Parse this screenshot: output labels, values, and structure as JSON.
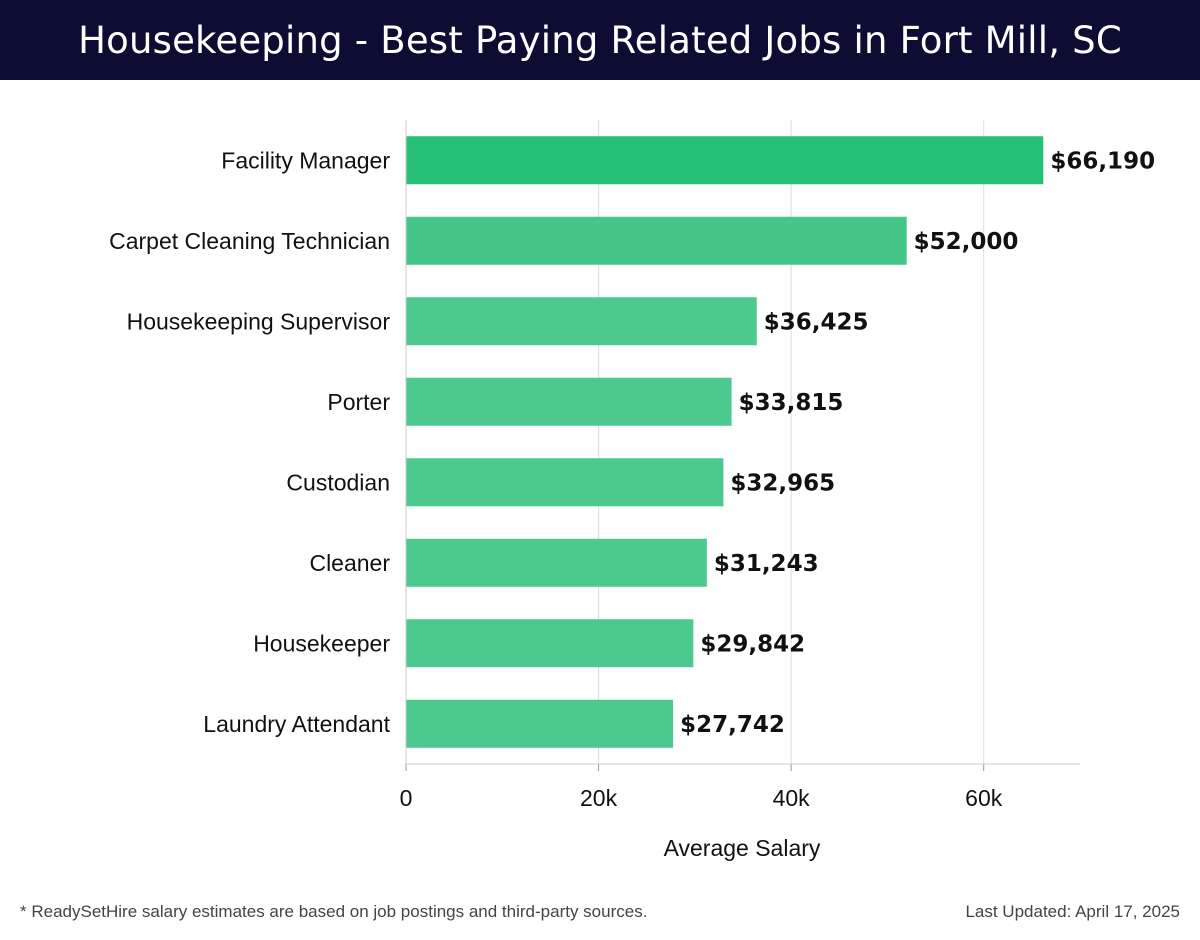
{
  "header": {
    "title": "Housekeeping - Best Paying Related Jobs in Fort Mill, SC"
  },
  "chart_data": {
    "type": "bar",
    "orientation": "horizontal",
    "categories": [
      "Facility Manager",
      "Carpet Cleaning Technician",
      "Housekeeping Supervisor",
      "Porter",
      "Custodian",
      "Cleaner",
      "Housekeeper",
      "Laundry Attendant"
    ],
    "values": [
      66190,
      52000,
      36425,
      33815,
      32965,
      31243,
      29842,
      27742
    ],
    "value_labels": [
      "$66,190",
      "$52,000",
      "$36,425",
      "$33,815",
      "$32,965",
      "$31,243",
      "$29,842",
      "$27,742"
    ],
    "xlabel": "Average Salary",
    "xlim": [
      0,
      70000
    ],
    "xticks": [
      0,
      20000,
      40000,
      60000
    ],
    "xtick_labels": [
      "0",
      "20k",
      "40k",
      "60k"
    ],
    "grid": true,
    "colors": {
      "top": "#27c077",
      "base": "#4cc98f"
    }
  },
  "footer": {
    "note": "* ReadySetHire salary estimates are based on job postings and third-party sources.",
    "updated": "Last Updated: April 17, 2025"
  }
}
